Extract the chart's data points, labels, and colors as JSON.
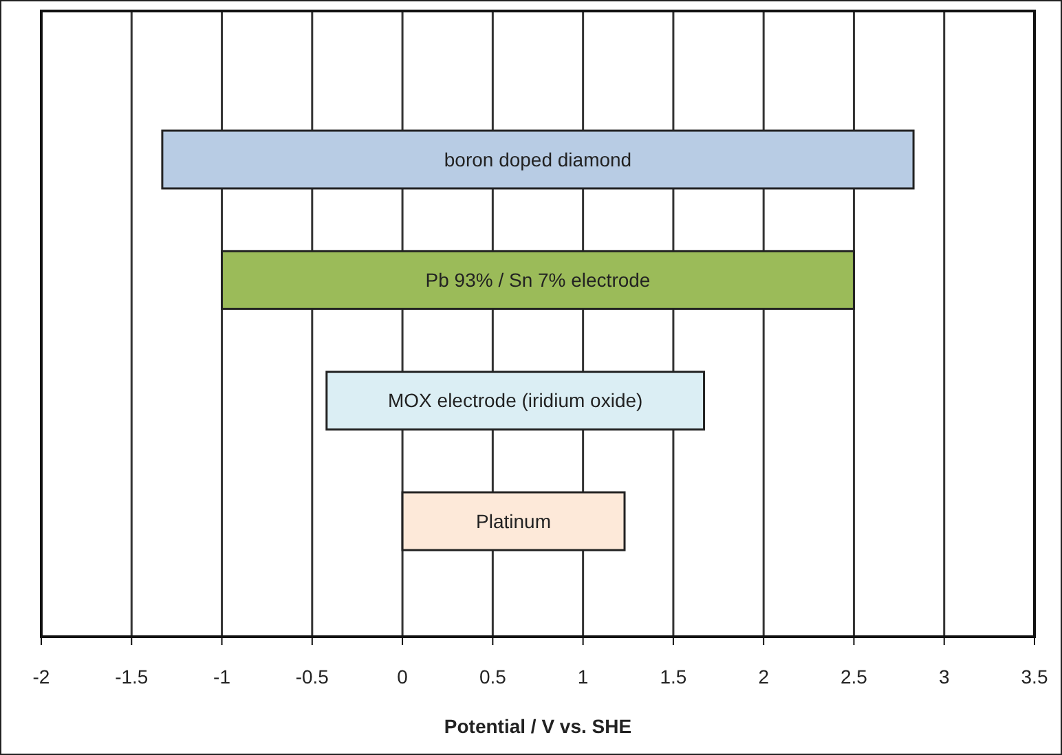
{
  "chart_data": {
    "type": "bar",
    "orientation": "horizontal",
    "xlabel": "Potential / V vs. SHE",
    "categories": [
      "boron doped diamond",
      "Pb 93% / Sn 7% electrode",
      "MOX electrode (iridium oxide)",
      "Platinum"
    ],
    "base": [
      -1.33,
      -1.0,
      -0.42,
      0
    ],
    "values": [
      4.16,
      3.5,
      2.09,
      1.23
    ],
    "colors": [
      "#b8cce4",
      "#9bbb59",
      "#dbeef4",
      "#fde9d9"
    ],
    "xlim": [
      -2,
      3.5
    ],
    "xticks": [
      -2,
      -1.5,
      -1,
      -0.5,
      0,
      0.5,
      1,
      1.5,
      2,
      2.5,
      3,
      3.5
    ],
    "grid": "x",
    "tick_labels": "x"
  }
}
